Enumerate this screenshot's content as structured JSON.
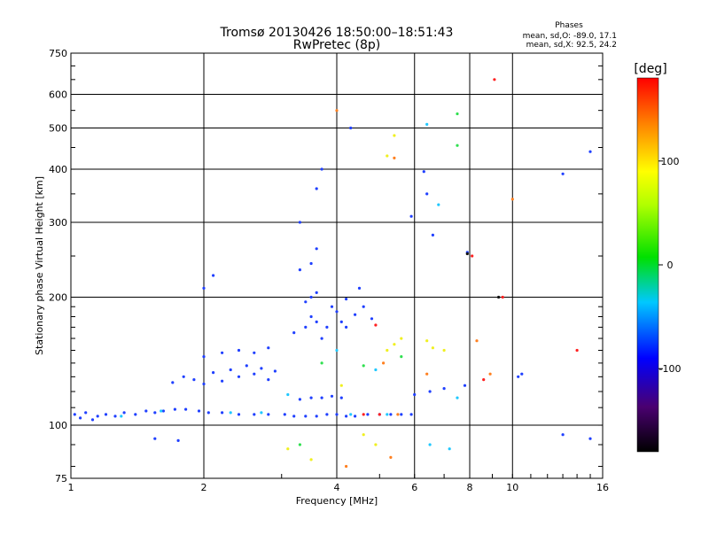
{
  "chart_data": {
    "type": "scatter",
    "title": "Tromsø 20130426 18:50:00–18:51:43",
    "subtitle": "RwPretec (8p)",
    "xlabel": "Frequency [MHz]",
    "ylabel": "Stationary phase Virtual Height [km]",
    "x_scale": "log",
    "y_scale": "log",
    "xlim": [
      1,
      16
    ],
    "ylim": [
      75,
      750
    ],
    "x_ticks": [
      1,
      2,
      4,
      6,
      8,
      10,
      16
    ],
    "y_ticks": [
      75,
      100,
      200,
      300,
      400,
      500,
      600,
      750
    ],
    "grid": true,
    "stats": {
      "heading": "Phases",
      "line1": "mean, sd,O: -89.0, 17.1",
      "line2": "mean, sd,X:  92.5, 24.2"
    },
    "colorbar": {
      "unit": "[deg]",
      "range": [
        -180,
        180
      ],
      "ticks": [
        100,
        0,
        -100
      ]
    },
    "series": [
      {
        "color": "#2040ff",
        "points": [
          [
            1.02,
            106
          ],
          [
            1.05,
            104
          ],
          [
            1.08,
            107
          ],
          [
            1.12,
            103
          ],
          [
            1.15,
            105
          ],
          [
            1.2,
            106
          ],
          [
            1.26,
            105
          ],
          [
            1.32,
            107
          ],
          [
            1.4,
            106
          ],
          [
            1.48,
            108
          ],
          [
            1.55,
            107
          ],
          [
            1.62,
            108
          ],
          [
            1.72,
            109
          ],
          [
            1.82,
            109
          ],
          [
            1.95,
            108
          ],
          [
            2.05,
            107
          ],
          [
            2.2,
            107
          ],
          [
            2.4,
            106
          ],
          [
            2.6,
            106
          ],
          [
            2.8,
            106
          ],
          [
            3.05,
            106
          ],
          [
            3.2,
            105
          ],
          [
            3.4,
            105
          ],
          [
            3.6,
            105
          ],
          [
            3.8,
            106
          ],
          [
            4.0,
            106
          ],
          [
            4.2,
            105
          ],
          [
            4.4,
            105
          ],
          [
            4.7,
            106
          ],
          [
            5.0,
            106
          ],
          [
            5.3,
            106
          ],
          [
            5.6,
            106
          ],
          [
            5.9,
            106
          ],
          [
            3.3,
            115
          ],
          [
            3.5,
            116
          ],
          [
            3.7,
            116
          ],
          [
            3.9,
            117
          ],
          [
            4.1,
            116
          ],
          [
            1.7,
            126
          ],
          [
            1.8,
            130
          ],
          [
            1.9,
            128
          ],
          [
            2.0,
            125
          ],
          [
            2.1,
            133
          ],
          [
            2.2,
            127
          ],
          [
            2.3,
            135
          ],
          [
            2.4,
            130
          ],
          [
            2.5,
            138
          ],
          [
            2.6,
            132
          ],
          [
            2.7,
            136
          ],
          [
            2.8,
            128
          ],
          [
            2.9,
            134
          ],
          [
            2.0,
            145
          ],
          [
            2.2,
            148
          ],
          [
            2.4,
            150
          ],
          [
            2.6,
            148
          ],
          [
            2.8,
            152
          ],
          [
            3.2,
            165
          ],
          [
            3.4,
            170
          ],
          [
            3.5,
            180
          ],
          [
            3.6,
            175
          ],
          [
            3.7,
            160
          ],
          [
            3.8,
            170
          ],
          [
            3.9,
            190
          ],
          [
            4.0,
            185
          ],
          [
            4.1,
            175
          ],
          [
            4.2,
            170
          ],
          [
            4.4,
            182
          ],
          [
            4.6,
            190
          ],
          [
            4.8,
            178
          ],
          [
            3.4,
            195
          ],
          [
            3.5,
            200
          ],
          [
            3.6,
            205
          ],
          [
            4.2,
            198
          ],
          [
            4.5,
            210
          ],
          [
            3.3,
            232
          ],
          [
            3.5,
            240
          ],
          [
            3.6,
            260
          ],
          [
            3.3,
            300
          ],
          [
            3.6,
            360
          ],
          [
            3.7,
            400
          ],
          [
            4.3,
            500
          ],
          [
            6.3,
            395
          ],
          [
            6.4,
            350
          ],
          [
            5.9,
            310
          ],
          [
            6.6,
            280
          ],
          [
            7.9,
            255
          ],
          [
            1.55,
            93
          ],
          [
            1.75,
            92
          ],
          [
            6.0,
            118
          ],
          [
            6.5,
            120
          ],
          [
            7.0,
            122
          ],
          [
            7.8,
            124
          ],
          [
            2.0,
            210
          ],
          [
            2.1,
            225
          ],
          [
            13.0,
            95
          ],
          [
            15.0,
            93
          ],
          [
            13.0,
            390
          ],
          [
            15.0,
            440
          ],
          [
            10.5,
            132
          ],
          [
            10.3,
            130
          ]
        ]
      },
      {
        "color": "#20c8ff",
        "points": [
          [
            1.3,
            105
          ],
          [
            1.6,
            108
          ],
          [
            2.3,
            107
          ],
          [
            2.7,
            107
          ],
          [
            4.3,
            106
          ],
          [
            5.2,
            106
          ],
          [
            4.0,
            150
          ],
          [
            4.9,
            135
          ],
          [
            3.1,
            118
          ],
          [
            6.5,
            90
          ],
          [
            7.2,
            88
          ],
          [
            7.5,
            116
          ],
          [
            6.4,
            510
          ],
          [
            6.8,
            330
          ]
        ]
      },
      {
        "color": "#30e050",
        "points": [
          [
            3.7,
            140
          ],
          [
            5.6,
            145
          ],
          [
            7.5,
            540
          ],
          [
            7.5,
            455
          ],
          [
            4.6,
            138
          ],
          [
            3.3,
            90
          ]
        ]
      },
      {
        "color": "#f0f020",
        "points": [
          [
            5.2,
            150
          ],
          [
            5.4,
            155
          ],
          [
            5.6,
            160
          ],
          [
            6.4,
            158
          ],
          [
            6.6,
            152
          ],
          [
            7.0,
            150
          ],
          [
            3.5,
            83
          ],
          [
            4.6,
            95
          ],
          [
            4.9,
            90
          ],
          [
            5.2,
            430
          ],
          [
            5.4,
            480
          ],
          [
            4.1,
            124
          ],
          [
            3.1,
            88
          ]
        ]
      },
      {
        "color": "#ff8020",
        "points": [
          [
            4.0,
            550
          ],
          [
            5.4,
            425
          ],
          [
            4.2,
            80
          ],
          [
            5.3,
            84
          ],
          [
            5.1,
            140
          ],
          [
            10.0,
            340
          ],
          [
            8.3,
            158
          ],
          [
            8.9,
            132
          ],
          [
            6.4,
            132
          ],
          [
            5.5,
            106
          ]
        ]
      },
      {
        "color": "#ff2020",
        "points": [
          [
            9.1,
            650
          ],
          [
            4.6,
            106
          ],
          [
            5.0,
            106
          ],
          [
            8.6,
            128
          ],
          [
            14.0,
            150
          ],
          [
            8.1,
            250
          ],
          [
            4.9,
            172
          ],
          [
            9.5,
            200
          ]
        ]
      },
      {
        "color": "#101010",
        "points": [
          [
            9.3,
            200
          ],
          [
            7.9,
            253
          ]
        ]
      }
    ]
  }
}
